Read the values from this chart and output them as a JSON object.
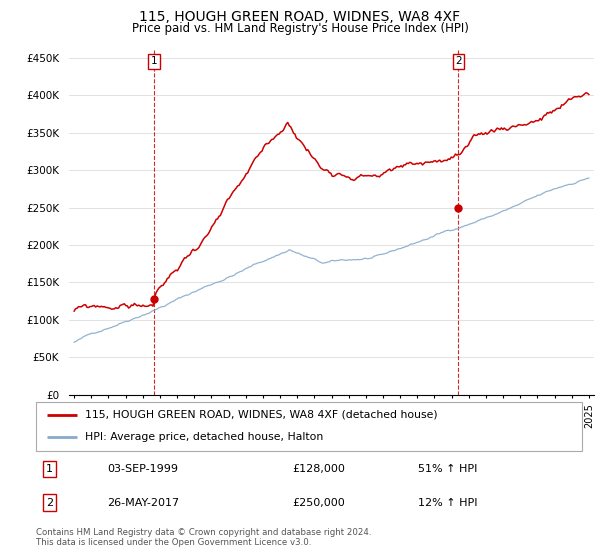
{
  "title": "115, HOUGH GREEN ROAD, WIDNES, WA8 4XF",
  "subtitle": "Price paid vs. HM Land Registry's House Price Index (HPI)",
  "ylim": [
    0,
    460000
  ],
  "yticks": [
    0,
    50000,
    100000,
    150000,
    200000,
    250000,
    300000,
    350000,
    400000,
    450000
  ],
  "ytick_labels": [
    "£0",
    "£50K",
    "£100K",
    "£150K",
    "£200K",
    "£250K",
    "£300K",
    "£350K",
    "£400K",
    "£450K"
  ],
  "xlim_left": 1994.7,
  "xlim_right": 2025.3,
  "transaction1": {
    "date_num": 1999.67,
    "price": 128000,
    "label": "1",
    "date_str": "03-SEP-1999",
    "pct": "51% ↑ HPI"
  },
  "transaction2": {
    "date_num": 2017.4,
    "price": 250000,
    "label": "2",
    "date_str": "26-MAY-2017",
    "pct": "12% ↑ HPI"
  },
  "legend_line1": "115, HOUGH GREEN ROAD, WIDNES, WA8 4XF (detached house)",
  "legend_line2": "HPI: Average price, detached house, Halton",
  "footer": "Contains HM Land Registry data © Crown copyright and database right 2024.\nThis data is licensed under the Open Government Licence v3.0.",
  "price_line_color": "#cc0000",
  "hpi_line_color": "#88aacc",
  "vline_color": "#cc0000",
  "marker_color": "#cc0000",
  "grid_color": "#dddddd",
  "title_fontsize": 10,
  "subtitle_fontsize": 8.5
}
